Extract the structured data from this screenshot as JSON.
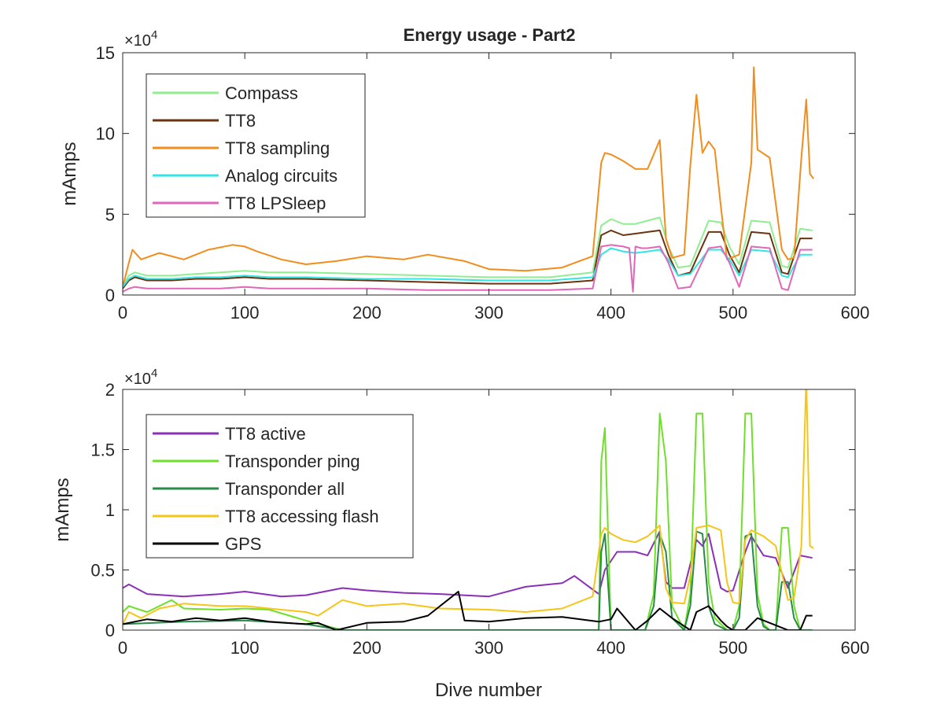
{
  "chart_data": [
    {
      "type": "line",
      "title": "Energy usage - Part2",
      "xlabel": "",
      "ylabel": "mAmps",
      "xlim": [
        0,
        600
      ],
      "ylim": [
        0,
        150000
      ],
      "exponent_label": "×10",
      "exponent_power": "4",
      "x_ticks": [
        0,
        100,
        200,
        300,
        400,
        500,
        600
      ],
      "x_tick_labels": [
        "0",
        "100",
        "200",
        "300",
        "400",
        "500",
        "600"
      ],
      "y_ticks": [
        0,
        50000,
        100000,
        150000
      ],
      "y_tick_labels": [
        "0",
        "5",
        "10",
        "15"
      ],
      "grid": false,
      "legend_position": "top-left",
      "series": [
        {
          "name": "Compass",
          "color": "#90EE90",
          "x": [
            0,
            5,
            10,
            20,
            40,
            60,
            80,
            100,
            120,
            150,
            200,
            250,
            300,
            350,
            385,
            392,
            400,
            410,
            420,
            430,
            440,
            447,
            455,
            465,
            480,
            490,
            497,
            505,
            515,
            530,
            540,
            545,
            555,
            565
          ],
          "y": [
            6000,
            12000,
            14000,
            12000,
            12000,
            13000,
            14000,
            15000,
            14000,
            14000,
            13000,
            12000,
            11000,
            11000,
            14000,
            43000,
            47000,
            44000,
            44000,
            46000,
            48000,
            30000,
            17000,
            18000,
            46000,
            45000,
            30000,
            19000,
            46000,
            45000,
            18000,
            17000,
            41000,
            40000
          ]
        },
        {
          "name": "TT8",
          "color": "#6B3410",
          "x": [
            0,
            5,
            10,
            20,
            40,
            60,
            80,
            100,
            120,
            150,
            200,
            250,
            300,
            350,
            385,
            392,
            400,
            410,
            420,
            430,
            440,
            447,
            455,
            465,
            480,
            490,
            497,
            505,
            515,
            530,
            540,
            545,
            555,
            565
          ],
          "y": [
            4000,
            9000,
            11000,
            9000,
            9000,
            10000,
            10000,
            11000,
            10000,
            10000,
            9000,
            8000,
            7000,
            7000,
            9000,
            37000,
            40000,
            37000,
            38000,
            39000,
            40000,
            25000,
            12000,
            14000,
            39000,
            39000,
            25000,
            14000,
            39000,
            38000,
            14000,
            13000,
            35000,
            35000
          ]
        },
        {
          "name": "TT8 sampling",
          "color": "#F28C1C",
          "x": [
            0,
            5,
            8,
            15,
            30,
            50,
            70,
            90,
            100,
            110,
            130,
            150,
            175,
            200,
            230,
            250,
            280,
            300,
            330,
            360,
            385,
            392,
            395,
            400,
            410,
            420,
            430,
            440,
            445,
            450,
            460,
            465,
            470,
            475,
            480,
            485,
            490,
            495,
            505,
            515,
            517,
            520,
            530,
            540,
            545,
            550,
            556,
            560,
            563,
            566
          ],
          "y": [
            5000,
            20000,
            28000,
            22000,
            26000,
            22000,
            28000,
            31000,
            30000,
            27000,
            22000,
            19000,
            21000,
            24000,
            22000,
            25000,
            21000,
            16000,
            15000,
            17000,
            24000,
            82000,
            88000,
            87000,
            83000,
            78000,
            78000,
            96000,
            35000,
            23000,
            25000,
            80000,
            124000,
            88000,
            95000,
            90000,
            55000,
            22000,
            25000,
            82000,
            141000,
            90000,
            85000,
            28000,
            22000,
            23000,
            85000,
            121000,
            75000,
            72000
          ]
        },
        {
          "name": "Analog circuits",
          "color": "#33E5E5",
          "x": [
            0,
            5,
            10,
            20,
            40,
            60,
            80,
            100,
            120,
            150,
            200,
            250,
            300,
            350,
            385,
            392,
            400,
            410,
            420,
            430,
            440,
            447,
            455,
            465,
            480,
            490,
            497,
            505,
            515,
            530,
            540,
            545,
            555,
            565
          ],
          "y": [
            5000,
            10000,
            12000,
            10000,
            10000,
            11000,
            11000,
            12000,
            11000,
            11000,
            10000,
            10000,
            9000,
            9000,
            11000,
            25000,
            29000,
            27000,
            26000,
            27000,
            28000,
            22000,
            12000,
            13000,
            28000,
            28000,
            22000,
            12000,
            28000,
            27000,
            12000,
            11000,
            25000,
            25000
          ]
        },
        {
          "name": "TT8 LPSleep",
          "color": "#E066B8",
          "x": [
            0,
            5,
            10,
            20,
            40,
            60,
            80,
            100,
            120,
            150,
            200,
            250,
            300,
            350,
            385,
            392,
            400,
            410,
            415,
            418,
            420,
            425,
            430,
            440,
            447,
            455,
            465,
            480,
            490,
            497,
            505,
            515,
            530,
            540,
            545,
            555,
            565
          ],
          "y": [
            2000,
            4000,
            5000,
            4000,
            4000,
            4000,
            4000,
            5000,
            4000,
            4000,
            4000,
            3000,
            3000,
            3000,
            4000,
            30000,
            31000,
            30000,
            29000,
            2000,
            30000,
            29000,
            29000,
            30000,
            20000,
            4000,
            5000,
            29000,
            30000,
            20000,
            5000,
            30000,
            29000,
            4000,
            3000,
            28000,
            28000
          ]
        }
      ]
    },
    {
      "type": "line",
      "title": "",
      "xlabel": "Dive number",
      "ylabel": "mAmps",
      "xlim": [
        0,
        600
      ],
      "ylim": [
        0,
        20000
      ],
      "exponent_label": "×10",
      "exponent_power": "4",
      "x_ticks": [
        0,
        100,
        200,
        300,
        400,
        500,
        600
      ],
      "x_tick_labels": [
        "0",
        "100",
        "200",
        "300",
        "400",
        "500",
        "600"
      ],
      "y_ticks": [
        0,
        5000,
        10000,
        15000,
        20000
      ],
      "y_tick_labels": [
        "0",
        "0.5",
        "1",
        "1.5",
        "2"
      ],
      "grid": false,
      "legend_position": "top-left",
      "series": [
        {
          "name": "TT8 active",
          "color": "#8B2FB8",
          "x": [
            0,
            5,
            20,
            50,
            80,
            100,
            130,
            150,
            180,
            200,
            230,
            260,
            300,
            330,
            360,
            370,
            390,
            395,
            405,
            420,
            430,
            440,
            445,
            450,
            460,
            470,
            475,
            480,
            490,
            495,
            500,
            510,
            515,
            525,
            535,
            545,
            555,
            565
          ],
          "y": [
            3500,
            3800,
            3000,
            2800,
            3000,
            3200,
            2800,
            2900,
            3500,
            3300,
            3100,
            3000,
            2800,
            3600,
            3900,
            4500,
            3000,
            5000,
            6500,
            6500,
            6200,
            8200,
            4000,
            3500,
            3500,
            7500,
            7000,
            8000,
            3500,
            3200,
            3300,
            6500,
            7800,
            6200,
            6000,
            3500,
            6200,
            6000
          ]
        },
        {
          "name": "Transponder ping",
          "color": "#6EE02A",
          "x": [
            0,
            5,
            20,
            40,
            50,
            80,
            100,
            120,
            150,
            180,
            200,
            230,
            250,
            300,
            350,
            390,
            392,
            395,
            400,
            410,
            420,
            428,
            435,
            440,
            445,
            450,
            460,
            465,
            470,
            475,
            480,
            485,
            495,
            500,
            505,
            510,
            515,
            520,
            525,
            530,
            535,
            540,
            545,
            550,
            555,
            565
          ],
          "y": [
            1500,
            2000,
            1500,
            2500,
            1800,
            1700,
            1800,
            1700,
            800,
            0,
            0,
            0,
            0,
            0,
            0,
            0,
            14000,
            16800,
            0,
            0,
            0,
            0,
            3000,
            18000,
            14000,
            2000,
            0,
            3000,
            18000,
            18000,
            4000,
            1000,
            0,
            0,
            2000,
            18000,
            18000,
            3000,
            500,
            0,
            0,
            8500,
            8500,
            2000,
            0,
            0
          ]
        },
        {
          "name": "Transponder all",
          "color": "#2A8A4A",
          "x": [
            0,
            50,
            100,
            150,
            180,
            300,
            390,
            392,
            395,
            400,
            410,
            420,
            428,
            435,
            440,
            445,
            450,
            460,
            465,
            470,
            475,
            480,
            485,
            495,
            500,
            505,
            510,
            515,
            520,
            525,
            530,
            535,
            540,
            545,
            550,
            555,
            565
          ],
          "y": [
            500,
            700,
            800,
            500,
            0,
            0,
            0,
            6500,
            8000,
            0,
            0,
            0,
            0,
            2000,
            8000,
            6500,
            1000,
            0,
            2000,
            8200,
            8000,
            2000,
            500,
            0,
            0,
            1000,
            7800,
            8000,
            2000,
            300,
            0,
            0,
            4000,
            4000,
            1000,
            0,
            0
          ]
        },
        {
          "name": "TT8 accessing flash",
          "color": "#F5C518",
          "x": [
            0,
            5,
            15,
            30,
            50,
            80,
            100,
            120,
            150,
            160,
            180,
            200,
            230,
            260,
            300,
            330,
            360,
            385,
            392,
            395,
            400,
            410,
            420,
            430,
            440,
            445,
            450,
            460,
            465,
            470,
            480,
            490,
            495,
            500,
            505,
            510,
            515,
            525,
            535,
            545,
            550,
            556,
            560,
            563,
            566
          ],
          "y": [
            500,
            1500,
            1000,
            1800,
            2200,
            2000,
            2000,
            1800,
            1500,
            1200,
            2500,
            2000,
            2200,
            1800,
            1700,
            1500,
            1800,
            2800,
            8000,
            8500,
            8000,
            7500,
            7300,
            7800,
            8700,
            3500,
            2300,
            2200,
            4500,
            8500,
            8700,
            8300,
            4000,
            2300,
            2200,
            7500,
            8300,
            7800,
            7000,
            2500,
            2700,
            7000,
            21000,
            7000,
            6800
          ]
        },
        {
          "name": "GPS",
          "color": "#000000",
          "x": [
            0,
            20,
            40,
            60,
            80,
            100,
            120,
            150,
            160,
            175,
            200,
            230,
            250,
            275,
            280,
            300,
            330,
            360,
            390,
            400,
            405,
            420,
            430,
            440,
            450,
            465,
            470,
            480,
            490,
            495,
            500,
            510,
            520,
            530,
            545,
            555,
            560,
            565
          ],
          "y": [
            500,
            900,
            700,
            1000,
            800,
            1000,
            700,
            500,
            600,
            0,
            600,
            700,
            1200,
            3200,
            800,
            700,
            1000,
            1100,
            700,
            900,
            1800,
            0,
            800,
            1800,
            1000,
            0,
            1500,
            2000,
            800,
            300,
            0,
            0,
            1000,
            600,
            0,
            0,
            1200,
            1200
          ]
        }
      ]
    }
  ]
}
